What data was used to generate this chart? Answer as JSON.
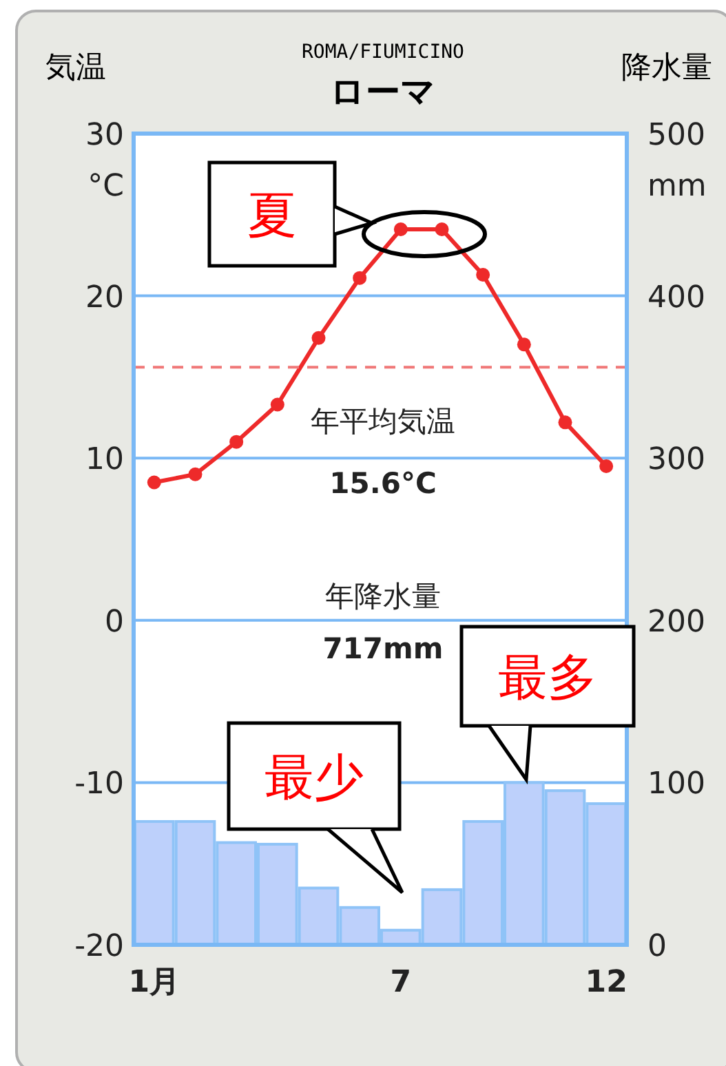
{
  "chart_data": {
    "type": "line",
    "title": "ローマ",
    "subtitle": "ROMA/FIUMICINO",
    "ylabel": "気温",
    "y2label": "降水量",
    "categories": [
      "1月",
      null,
      null,
      null,
      null,
      null,
      "7",
      null,
      null,
      null,
      null,
      "12"
    ],
    "series": [
      {
        "type": "bar",
        "axis": "y2",
        "color": "#bdd0fb",
        "values": [
          76,
          76,
          63,
          62,
          35,
          23,
          9,
          34,
          76,
          100,
          95,
          87
        ]
      },
      {
        "color": "#ee2a2a",
        "values": [
          8.5,
          9.0,
          11.0,
          13.3,
          17.4,
          21.1,
          24.1,
          24.1,
          21.3,
          17.0,
          12.2,
          9.5
        ]
      }
    ],
    "ylim": [
      -20,
      30
    ],
    "yticks": [
      -20,
      -10,
      0,
      10,
      20,
      30
    ],
    "y2lim": [
      0,
      500
    ],
    "y2ticks": [
      0,
      100,
      200,
      300,
      400,
      500
    ],
    "ref_lines": [
      {
        "axis": "y",
        "value": 15.6,
        "color": "#f07878",
        "line_style": "dashed"
      }
    ],
    "annotations": [
      "°C",
      "mm",
      "年平均気温",
      "15.6°C",
      "年降水量",
      "717mm",
      "夏",
      "最少",
      "最多"
    ],
    "grid": "y",
    "marker": "circle",
    "line_style": "solid"
  }
}
